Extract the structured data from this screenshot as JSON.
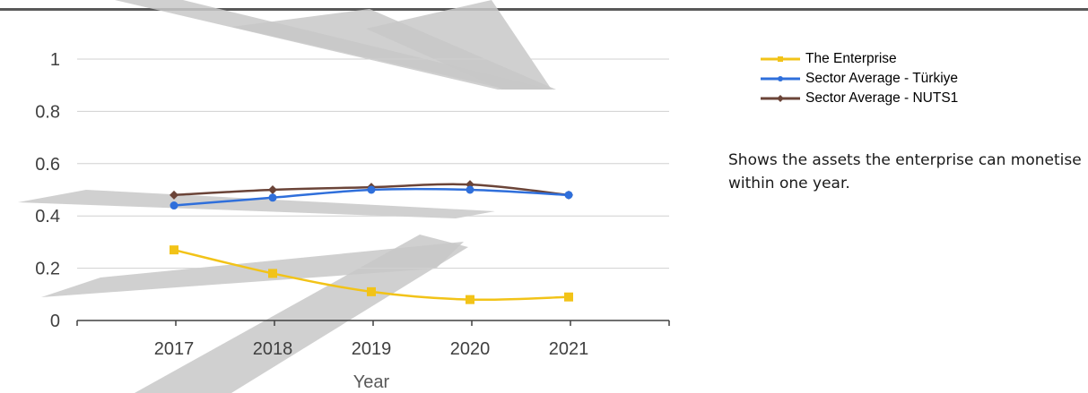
{
  "chart_data": {
    "type": "line",
    "categories": [
      "2017",
      "2018",
      "2019",
      "2020",
      "2021"
    ],
    "xlabel": "Year",
    "ylabel": "",
    "ylim": [
      0,
      1
    ],
    "yticks": [
      "0",
      "0.2",
      "0.4",
      "0.6",
      "0.8",
      "1"
    ],
    "grid": true,
    "legend_position": "right",
    "series": [
      {
        "name": "The Enterprise",
        "values": [
          0.27,
          0.18,
          0.11,
          0.08,
          0.09
        ],
        "color": "#F2C318",
        "marker": "square"
      },
      {
        "name": "Sector Average - Türkiye",
        "values": [
          0.44,
          0.47,
          0.5,
          0.5,
          0.48
        ],
        "color": "#2F6FDB",
        "marker": "circle"
      },
      {
        "name": "Sector Average - NUTS1",
        "values": [
          0.48,
          0.5,
          0.51,
          0.52,
          0.48
        ],
        "color": "#6B4438",
        "marker": "diamond"
      }
    ]
  },
  "description": "Shows the assets the enterprise can monetise within one year.",
  "watermark_color": "#c8c8c8"
}
